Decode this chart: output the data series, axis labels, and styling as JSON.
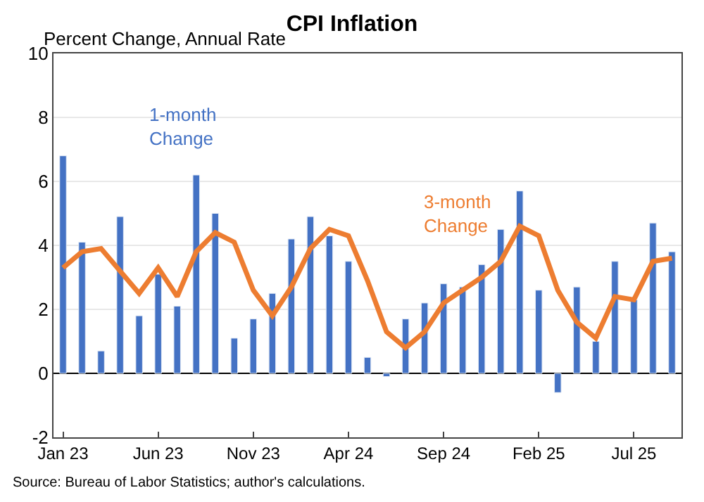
{
  "chart_data": {
    "type": "bar",
    "title": "CPI Inflation",
    "subtitle": "Percent Change, Annual Rate",
    "categories": [
      "Jan 23",
      null,
      null,
      null,
      null,
      "Jun 23",
      null,
      null,
      null,
      null,
      "Nov 23",
      null,
      null,
      null,
      null,
      "Apr 24",
      null,
      null,
      null,
      null,
      "Sep 24",
      null,
      null,
      null,
      null,
      "Feb 25",
      null,
      null,
      null,
      null,
      "Jul 25",
      null,
      null
    ],
    "series": [
      {
        "name": "1-month\nChange",
        "color": "#4472c4",
        "values": [
          6.8,
          4.1,
          0.7,
          4.9,
          1.8,
          3.1,
          2.1,
          6.2,
          5.0,
          1.1,
          1.7,
          2.5,
          4.2,
          4.9,
          4.3,
          3.5,
          0.5,
          -0.1,
          1.7,
          2.2,
          2.8,
          2.7,
          3.4,
          4.5,
          5.7,
          2.6,
          -0.6,
          2.7,
          1.0,
          3.5,
          2.3,
          4.7,
          3.8
        ]
      },
      {
        "name": "3-month\nChange",
        "type": "line",
        "color": "#ed7d31",
        "values": [
          3.3,
          3.8,
          3.9,
          3.2,
          2.5,
          3.3,
          2.4,
          3.8,
          4.4,
          4.1,
          2.6,
          1.8,
          2.7,
          3.9,
          4.5,
          4.3,
          2.9,
          1.3,
          0.8,
          1.3,
          2.2,
          2.6,
          3.0,
          3.5,
          4.6,
          4.3,
          2.6,
          1.6,
          1.1,
          2.4,
          2.3,
          3.5,
          3.6
        ]
      }
    ],
    "ylim": [
      -2,
      10
    ],
    "yticks": [
      -2,
      0,
      2,
      4,
      6,
      8,
      10
    ],
    "grid": "y",
    "annotations": [
      "Source: Bureau of Labor Statistics; author's calculations."
    ]
  }
}
